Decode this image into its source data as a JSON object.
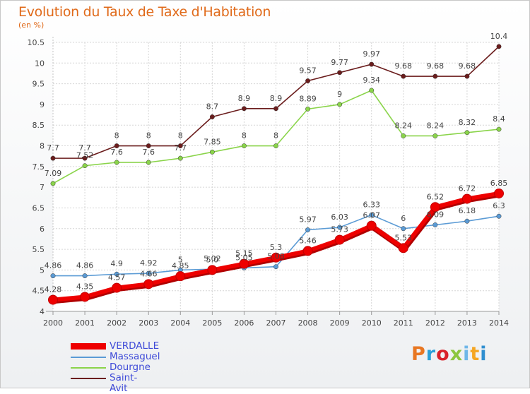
{
  "title": "Evolution du Taux de Taxe d'Habitation",
  "unit_label": "(en %)",
  "logo_text": "Proxiti",
  "logo_colors": [
    "#e87722",
    "#2aa0d8",
    "#d9222a",
    "#8cc63f",
    "#6fb7e8",
    "#f5a623",
    "#2f8fd0"
  ],
  "chart_data": {
    "type": "line",
    "x": [
      2000,
      2001,
      2002,
      2003,
      2004,
      2005,
      2006,
      2007,
      2008,
      2009,
      2010,
      2011,
      2012,
      2013,
      2014
    ],
    "ylim": [
      4,
      10.5
    ],
    "yticks": [
      "4",
      "4.5",
      "5",
      "5.5",
      "6",
      "6.5",
      "7",
      "7.5",
      "8",
      "8.5",
      "9",
      "9.5",
      "10",
      "10.5"
    ],
    "grid": true,
    "series": [
      {
        "name": "VERDALLE",
        "color": "#ee0000",
        "values": [
          4.28,
          4.35,
          4.57,
          4.66,
          4.85,
          5.0,
          5.15,
          5.3,
          5.46,
          5.73,
          6.07,
          5.53,
          6.52,
          6.72,
          6.85
        ],
        "labels": [
          "4.28",
          "4.35",
          "4.57",
          "4.66",
          "4.85",
          "5.0",
          "5.15",
          "5.3",
          "5.46",
          "5.73",
          "6.07",
          "5.53",
          "6.52",
          "6.72",
          "6.85"
        ]
      },
      {
        "name": "Massaguel",
        "color": "#5b9bd5",
        "values": [
          4.86,
          4.86,
          4.9,
          4.92,
          5.0,
          5.02,
          5.05,
          5.08,
          5.97,
          6.03,
          6.33,
          6.0,
          6.09,
          6.18,
          6.3
        ],
        "labels": [
          "4.86",
          "4.86",
          "4.9",
          "4.92",
          "5",
          "5.02",
          "5.05",
          "5.08",
          "5.97",
          "6.03",
          "6.33",
          "6",
          "6.09",
          "6.18",
          "6.3"
        ]
      },
      {
        "name": "Dourgne",
        "color": "#8ad44a",
        "values": [
          7.09,
          7.52,
          7.6,
          7.6,
          7.7,
          7.85,
          8.0,
          8.0,
          8.89,
          9.0,
          9.34,
          8.24,
          8.24,
          8.32,
          8.4
        ],
        "labels": [
          "7.09",
          "7.52",
          "7.6",
          "7.6",
          "7.7",
          "7.85",
          "8",
          "8",
          "8.89",
          "9",
          "9.34",
          "8.24",
          "8.24",
          "8.32",
          "8.4"
        ]
      },
      {
        "name": "Saint-Avit",
        "color": "#6b1d1d",
        "values": [
          7.7,
          7.7,
          8.0,
          8.0,
          8.0,
          8.7,
          8.9,
          8.9,
          9.57,
          9.77,
          9.97,
          9.68,
          9.68,
          9.68,
          10.4
        ],
        "labels": [
          "7.7",
          "7.7",
          "8",
          "8",
          "8",
          "8.7",
          "8.9",
          "8.9",
          "9.57",
          "9.77",
          "9.97",
          "9.68",
          "9.68",
          "9.68",
          "10.4"
        ]
      }
    ]
  }
}
